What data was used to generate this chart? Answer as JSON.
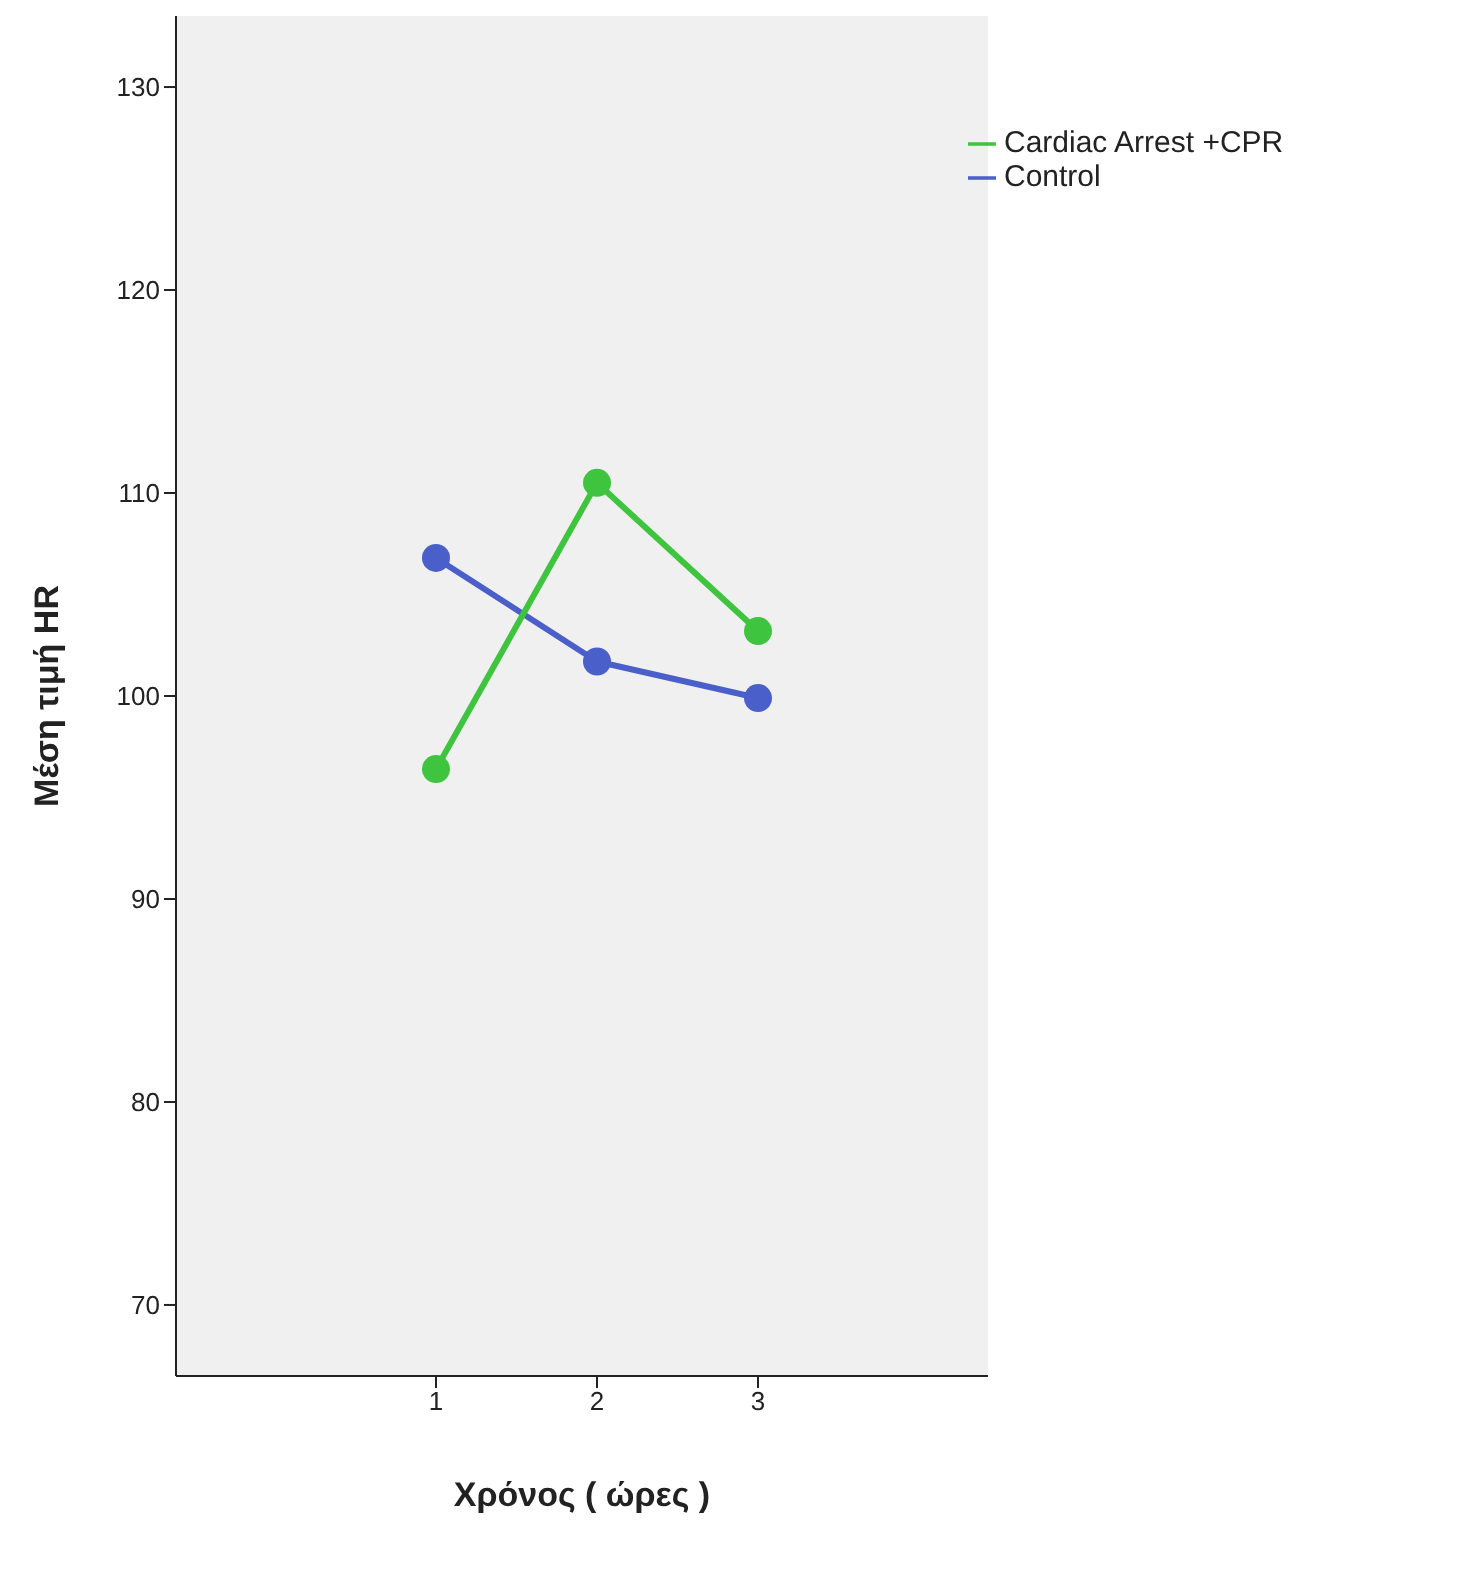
{
  "chart_data": {
    "type": "line",
    "xlabel": "Χρόνος ( ώρες )",
    "ylabel": "Μέση τιμή HR",
    "categories": [
      "1",
      "2",
      "3"
    ],
    "series": [
      {
        "name": "Control",
        "color": "#4a5fc9",
        "values": [
          106.8,
          101.7,
          99.9
        ]
      },
      {
        "name": "Cardiac Arrest +CPR",
        "color": "#3ec43e",
        "values": [
          96.4,
          110.5,
          103.2
        ]
      }
    ],
    "ylim": [
      66.5,
      133.5
    ],
    "yticks": [
      70,
      80,
      90,
      100,
      110,
      120,
      130
    ],
    "grid": false,
    "legend": "top right",
    "marker": "circle",
    "line_style": "solid"
  }
}
